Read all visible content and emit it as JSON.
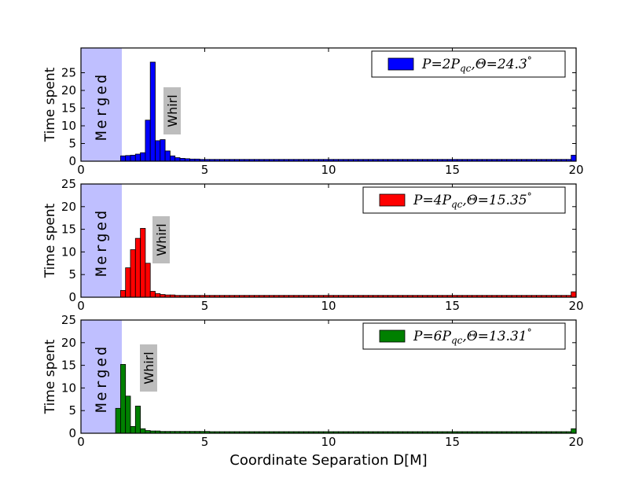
{
  "chart_data": [
    {
      "type": "bar",
      "ylabel": "Time spent",
      "xlabel": "",
      "xlim": [
        0,
        20
      ],
      "ylim": [
        0,
        32
      ],
      "xticks": [
        "0",
        "5",
        "10",
        "15",
        "20"
      ],
      "yticks": [
        "0",
        "5",
        "10",
        "15",
        "20",
        "25"
      ],
      "merged_label": "Merged",
      "merged_region": [
        0,
        1.65
      ],
      "whirl_label": "Whirl",
      "legend": "P=2Pqc, Θ=24.3°",
      "color": "#0000ff",
      "bin_width": 0.2,
      "bars": [
        {
          "x": 1.6,
          "y": 1.5
        },
        {
          "x": 1.8,
          "y": 1.6
        },
        {
          "x": 2.0,
          "y": 1.7
        },
        {
          "x": 2.2,
          "y": 2.0
        },
        {
          "x": 2.4,
          "y": 2.4
        },
        {
          "x": 2.6,
          "y": 11.6
        },
        {
          "x": 2.8,
          "y": 28.0
        },
        {
          "x": 3.0,
          "y": 5.8
        },
        {
          "x": 3.2,
          "y": 6.1
        },
        {
          "x": 3.4,
          "y": 2.9
        },
        {
          "x": 3.6,
          "y": 1.5
        },
        {
          "x": 3.8,
          "y": 1.0
        },
        {
          "x": 4.0,
          "y": 0.8
        },
        {
          "x": 4.2,
          "y": 0.7
        },
        {
          "x": 4.4,
          "y": 0.6
        },
        {
          "x": 4.6,
          "y": 0.6
        },
        {
          "x": 4.8,
          "y": 0.5
        },
        {
          "x": 5.0,
          "y": 0.5
        }
      ],
      "tail": {
        "from": 5.2,
        "to": 19.6,
        "y": 0.5
      },
      "last_bar": {
        "x": 19.8,
        "y": 1.7
      }
    },
    {
      "type": "bar",
      "ylabel": "Time spent",
      "xlabel": "",
      "xlim": [
        0,
        20
      ],
      "ylim": [
        0,
        25
      ],
      "xticks": [
        "0",
        "5",
        "10",
        "15",
        "20"
      ],
      "yticks": [
        "0",
        "5",
        "10",
        "15",
        "20",
        "25"
      ],
      "merged_label": "Merged",
      "merged_region": [
        0,
        1.65
      ],
      "whirl_label": "Whirl",
      "legend": "P=4Pqc, Θ=15.35°",
      "color": "#ff0000",
      "bin_width": 0.2,
      "bars": [
        {
          "x": 1.6,
          "y": 1.5
        },
        {
          "x": 1.8,
          "y": 6.5
        },
        {
          "x": 2.0,
          "y": 10.5
        },
        {
          "x": 2.2,
          "y": 13.0
        },
        {
          "x": 2.4,
          "y": 15.2
        },
        {
          "x": 2.6,
          "y": 7.5
        },
        {
          "x": 2.8,
          "y": 1.3
        },
        {
          "x": 3.0,
          "y": 0.8
        },
        {
          "x": 3.2,
          "y": 0.6
        },
        {
          "x": 3.4,
          "y": 0.5
        },
        {
          "x": 3.6,
          "y": 0.5
        },
        {
          "x": 3.8,
          "y": 0.4
        },
        {
          "x": 4.0,
          "y": 0.4
        },
        {
          "x": 4.2,
          "y": 0.4
        },
        {
          "x": 4.4,
          "y": 0.4
        },
        {
          "x": 4.6,
          "y": 0.4
        },
        {
          "x": 4.8,
          "y": 0.4
        },
        {
          "x": 5.0,
          "y": 0.4
        }
      ],
      "tail": {
        "from": 5.2,
        "to": 19.6,
        "y": 0.4
      },
      "last_bar": {
        "x": 19.8,
        "y": 1.2
      }
    },
    {
      "type": "bar",
      "ylabel": "Time spent",
      "xlabel": "Coordinate Separation D[M]",
      "xlim": [
        0,
        20
      ],
      "ylim": [
        0,
        25
      ],
      "xticks": [
        "0",
        "5",
        "10",
        "15",
        "20"
      ],
      "yticks": [
        "0",
        "5",
        "10",
        "15",
        "20",
        "25"
      ],
      "merged_label": "Merged",
      "merged_region": [
        0,
        1.65
      ],
      "whirl_label": "Whirl",
      "legend": "P=6Pqc, Θ=13.31°",
      "color": "#008000",
      "bin_width": 0.2,
      "bars": [
        {
          "x": 1.4,
          "y": 5.5
        },
        {
          "x": 1.6,
          "y": 15.2
        },
        {
          "x": 1.8,
          "y": 8.2
        },
        {
          "x": 2.0,
          "y": 1.5
        },
        {
          "x": 2.2,
          "y": 6.0
        },
        {
          "x": 2.4,
          "y": 1.0
        },
        {
          "x": 2.6,
          "y": 0.6
        },
        {
          "x": 2.8,
          "y": 0.5
        },
        {
          "x": 3.0,
          "y": 0.5
        },
        {
          "x": 3.2,
          "y": 0.4
        },
        {
          "x": 3.4,
          "y": 0.4
        },
        {
          "x": 3.6,
          "y": 0.4
        },
        {
          "x": 3.8,
          "y": 0.4
        },
        {
          "x": 4.0,
          "y": 0.4
        },
        {
          "x": 4.2,
          "y": 0.4
        },
        {
          "x": 4.4,
          "y": 0.4
        },
        {
          "x": 4.6,
          "y": 0.4
        },
        {
          "x": 4.8,
          "y": 0.4
        },
        {
          "x": 5.0,
          "y": 0.4
        }
      ],
      "tail": {
        "from": 5.2,
        "to": 19.6,
        "y": 0.35
      },
      "last_bar": {
        "x": 19.8,
        "y": 1.0
      }
    }
  ]
}
